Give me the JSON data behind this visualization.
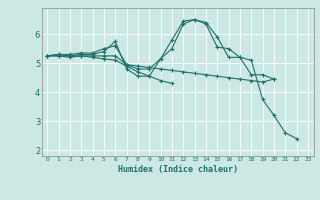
{
  "xlabel": "Humidex (Indice chaleur)",
  "bg_color": "#cce8e4",
  "grid_color": "#ffffff",
  "line_color": "#1e7068",
  "xlim": [
    -0.5,
    23.5
  ],
  "ylim": [
    1.8,
    6.9
  ],
  "ytick_values": [
    2,
    3,
    4,
    5,
    6
  ],
  "lines": [
    [
      5.25,
      5.3,
      5.25,
      5.3,
      5.3,
      5.4,
      5.75,
      4.8,
      4.55,
      4.55,
      5.15,
      5.5,
      6.35,
      6.5,
      6.4,
      5.9,
      5.2,
      5.2,
      4.6,
      4.6,
      4.45,
      null,
      null,
      null
    ],
    [
      5.25,
      5.25,
      5.25,
      5.25,
      5.25,
      5.25,
      5.25,
      4.95,
      4.9,
      4.85,
      4.8,
      4.75,
      4.7,
      4.65,
      4.6,
      4.55,
      4.5,
      4.45,
      4.4,
      4.35,
      4.45,
      null,
      null,
      null
    ],
    [
      5.25,
      5.25,
      5.2,
      5.25,
      5.2,
      5.15,
      5.1,
      4.9,
      4.7,
      4.55,
      4.4,
      4.3,
      null,
      null,
      null,
      null,
      null,
      null,
      null,
      null,
      null,
      null,
      null,
      null
    ],
    [
      5.25,
      5.3,
      5.3,
      5.35,
      5.35,
      5.5,
      5.6,
      4.95,
      4.8,
      4.8,
      5.15,
      5.8,
      6.45,
      6.5,
      6.35,
      5.55,
      5.5,
      5.2,
      5.1,
      3.75,
      3.2,
      2.6,
      2.4,
      null
    ]
  ]
}
